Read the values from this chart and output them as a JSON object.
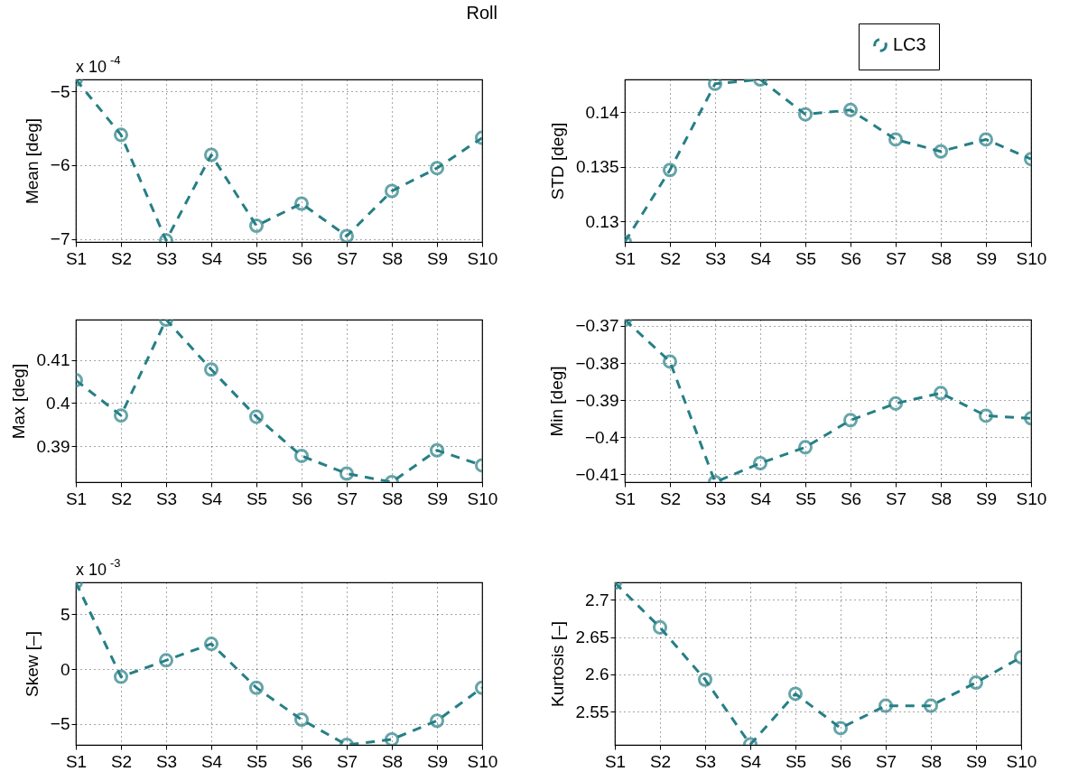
{
  "chart_data": [
    {
      "type": "line",
      "title": "Roll",
      "categories": [
        "S1",
        "S2",
        "S3",
        "S4",
        "S5",
        "S6",
        "S7",
        "S8",
        "S9",
        "S10"
      ],
      "ylabel": "Mean [deg]",
      "annotations": [
        "x 10$^{-4}$"
      ],
      "ylim": [
        -7.04,
        -4.84
      ],
      "yticks": [
        -7,
        -6,
        -5
      ],
      "grid": true,
      "marker": "circle",
      "line_style": "dashed",
      "series": [
        {
          "color": "#267f85",
          "values": [
            -4.84,
            -5.59,
            -7.02,
            -5.86,
            -6.82,
            -6.52,
            -6.96,
            -6.35,
            -6.04,
            -5.63
          ]
        }
      ]
    },
    {
      "type": "line",
      "categories": [
        "S1",
        "S2",
        "S3",
        "S4",
        "S5",
        "S6",
        "S7",
        "S8",
        "S9",
        "S10"
      ],
      "ylabel": "STD [deg]",
      "ylim": [
        0.1281,
        0.143
      ],
      "yticks": [
        0.13,
        0.135,
        0.14
      ],
      "grid": true,
      "marker": "circle",
      "line_style": "dashed",
      "legend": "top right",
      "series": [
        {
          "name": "LC3",
          "color": "#267f85",
          "values": [
            0.1281,
            0.1347,
            0.1426,
            0.143,
            0.1398,
            0.1402,
            0.1375,
            0.1364,
            0.1375,
            0.1357
          ]
        }
      ]
    },
    {
      "type": "line",
      "categories": [
        "S1",
        "S2",
        "S3",
        "S4",
        "S5",
        "S6",
        "S7",
        "S8",
        "S9",
        "S10"
      ],
      "ylabel": "Max [deg]",
      "ylim": [
        0.3816,
        0.4194
      ],
      "yticks": [
        0.39,
        0.4,
        0.41
      ],
      "grid": true,
      "marker": "circle",
      "line_style": "dashed",
      "series": [
        {
          "color": "#267f85",
          "values": [
            0.4053,
            0.3971,
            0.4194,
            0.4078,
            0.3968,
            0.3877,
            0.3836,
            0.3816,
            0.389,
            0.3855
          ]
        }
      ]
    },
    {
      "type": "line",
      "categories": [
        "S1",
        "S2",
        "S3",
        "S4",
        "S5",
        "S6",
        "S7",
        "S8",
        "S9",
        "S10"
      ],
      "ylabel": "Min [deg]",
      "ylim": [
        -0.4121,
        -0.3683
      ],
      "yticks": [
        -0.41,
        -0.4,
        -0.39,
        -0.38,
        -0.37
      ],
      "grid": true,
      "marker": "circle",
      "line_style": "dashed",
      "series": [
        {
          "color": "#267f85",
          "values": [
            -0.3683,
            -0.3796,
            -0.4121,
            -0.407,
            -0.4027,
            -0.3954,
            -0.3909,
            -0.3881,
            -0.3942,
            -0.3949
          ]
        }
      ]
    },
    {
      "type": "line",
      "categories": [
        "S1",
        "S2",
        "S3",
        "S4",
        "S5",
        "S6",
        "S7",
        "S8",
        "S9",
        "S10"
      ],
      "ylabel": "Skew [–]",
      "annotations": [
        "x 10$^{-3}$"
      ],
      "ylim": [
        -6.9,
        7.9
      ],
      "yticks": [
        -5,
        0,
        5
      ],
      "grid": true,
      "marker": "circle",
      "line_style": "dashed",
      "series": [
        {
          "color": "#267f85",
          "values": [
            7.9,
            -0.7,
            0.8,
            2.3,
            -1.7,
            -4.6,
            -6.9,
            -6.4,
            -4.7,
            -1.7
          ]
        }
      ]
    },
    {
      "type": "line",
      "categories": [
        "S1",
        "S2",
        "S3",
        "S4",
        "S5",
        "S6",
        "S7",
        "S8",
        "S9",
        "S10"
      ],
      "ylabel": "Kurtosis [–]",
      "ylim": [
        2.5055,
        2.7234
      ],
      "yticks": [
        2.55,
        2.6,
        2.65,
        2.7
      ],
      "grid": true,
      "marker": "circle",
      "line_style": "dashed",
      "series": [
        {
          "color": "#267f85",
          "values": [
            2.723,
            2.663,
            2.593,
            2.506,
            2.574,
            2.528,
            2.558,
            2.558,
            2.589,
            2.623
          ]
        }
      ]
    }
  ]
}
